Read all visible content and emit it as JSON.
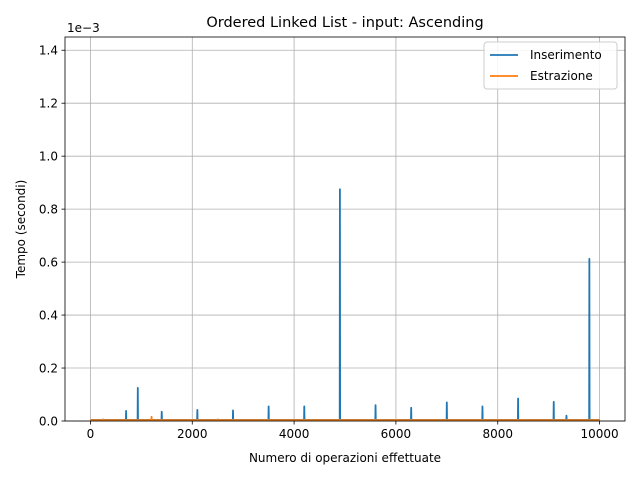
{
  "chart_data": {
    "type": "line",
    "title": "Ordered Linked List - input: Ascending",
    "xlabel": "Numero di operazioni effettuate",
    "ylabel": "Tempo (secondi)",
    "y_scale_label": "1e−3",
    "xlim": [
      -500,
      10500
    ],
    "ylim": [
      0,
      1.45
    ],
    "xticks": [
      0,
      2000,
      4000,
      6000,
      8000,
      10000
    ],
    "yticks": [
      0.0,
      0.2,
      0.4,
      0.6,
      0.8,
      1.0,
      1.2,
      1.4
    ],
    "ytick_labels": [
      "0.0",
      "0.2",
      "0.4",
      "0.6",
      "0.8",
      "1.0",
      "1.2",
      "1.4"
    ],
    "grid": true,
    "legend_position": "top-right",
    "series": [
      {
        "name": "Inserimento",
        "color": "#1f77b4",
        "baseline": 0.004,
        "spikes": [
          [
            700,
            0.038
          ],
          [
            930,
            0.125
          ],
          [
            1400,
            0.035
          ],
          [
            2100,
            0.042
          ],
          [
            2800,
            0.04
          ],
          [
            3500,
            0.055
          ],
          [
            4200,
            0.055
          ],
          [
            4900,
            0.875
          ],
          [
            5600,
            0.06
          ],
          [
            6300,
            0.05
          ],
          [
            7000,
            0.07
          ],
          [
            7700,
            0.055
          ],
          [
            8400,
            0.085
          ],
          [
            9100,
            0.072
          ],
          [
            9350,
            0.02
          ],
          [
            9800,
            0.612
          ]
        ]
      },
      {
        "name": "Estrazione",
        "color": "#ff7f0e",
        "baseline": 0.003,
        "spikes": [
          [
            250,
            0.006
          ],
          [
            1200,
            0.016
          ],
          [
            2500,
            0.006
          ],
          [
            6000,
            0.005
          ],
          [
            8500,
            0.005
          ]
        ]
      }
    ]
  }
}
